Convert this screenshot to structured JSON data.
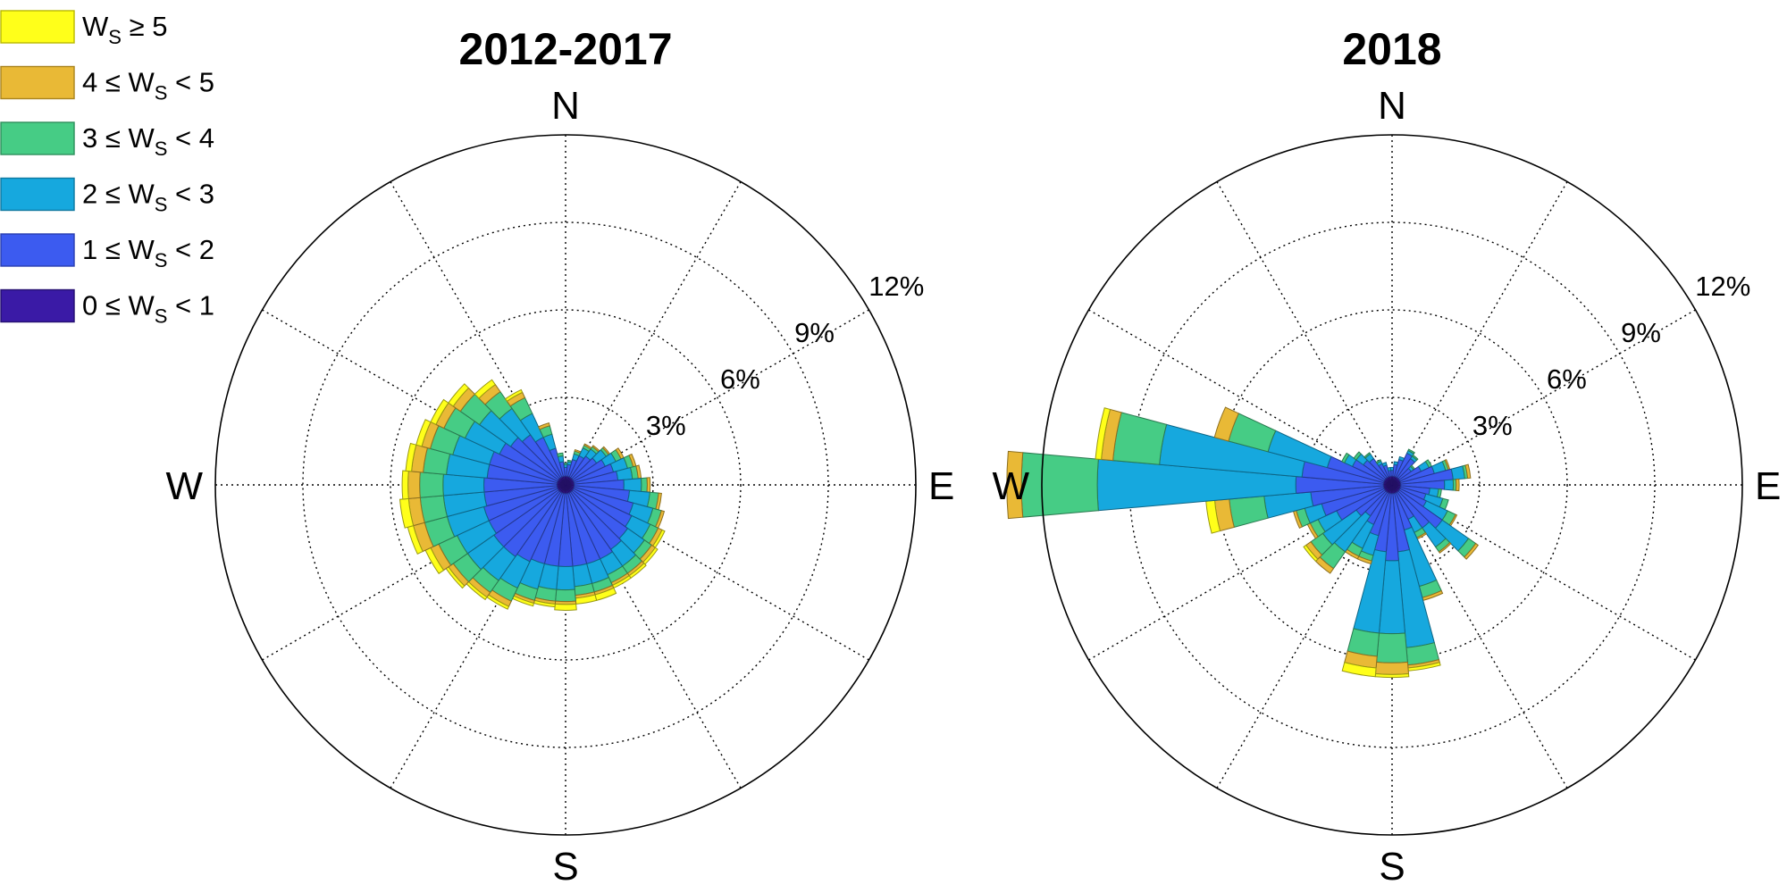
{
  "chart_data": [
    {
      "type": "windrose",
      "title": "2012-2017",
      "rings_percent": [
        3,
        6,
        9,
        12
      ],
      "ring_labels": [
        "3%",
        "6%",
        "9%",
        "12%"
      ],
      "r_max_percent": 12,
      "directions_labels": {
        "N": "N",
        "E": "E",
        "S": "S",
        "W": "W"
      },
      "sector_width_deg": 10,
      "sector_directions_deg": [
        0,
        10,
        20,
        30,
        40,
        50,
        60,
        70,
        80,
        90,
        100,
        110,
        120,
        130,
        140,
        150,
        160,
        170,
        180,
        190,
        200,
        210,
        220,
        230,
        240,
        250,
        260,
        270,
        280,
        290,
        300,
        310,
        320,
        330,
        340,
        350
      ],
      "series": [
        {
          "name": "0 ≤ W_S < 1",
          "color": "#3a1aa6",
          "values": [
            0.3,
            0.3,
            0.3,
            0.3,
            0.3,
            0.3,
            0.3,
            0.3,
            0.3,
            0.3,
            0.3,
            0.3,
            0.3,
            0.3,
            0.3,
            0.3,
            0.3,
            0.3,
            0.3,
            0.3,
            0.3,
            0.3,
            0.3,
            0.3,
            0.3,
            0.3,
            0.3,
            0.3,
            0.3,
            0.3,
            0.3,
            0.3,
            0.3,
            0.3,
            0.3,
            0.3
          ]
        },
        {
          "name": "1 ≤ W_S < 2",
          "color": "#3c5bf0",
          "values": [
            0.3,
            0.4,
            0.6,
            0.8,
            0.9,
            1.0,
            1.2,
            1.4,
            1.5,
            1.7,
            1.9,
            2.1,
            2.2,
            2.3,
            2.4,
            2.5,
            2.5,
            2.5,
            2.5,
            2.5,
            2.5,
            2.6,
            2.7,
            2.7,
            2.6,
            2.6,
            2.5,
            2.5,
            2.4,
            2.4,
            2.2,
            2.0,
            1.8,
            1.5,
            1.0,
            0.5
          ]
        },
        {
          "name": "2 ≤ W_S < 3",
          "color": "#16a8de",
          "values": [
            0.1,
            0.1,
            0.2,
            0.3,
            0.3,
            0.4,
            0.4,
            0.5,
            0.5,
            0.6,
            0.7,
            0.7,
            0.7,
            0.7,
            0.7,
            0.6,
            0.7,
            0.7,
            0.8,
            0.8,
            0.9,
            1.0,
            1.0,
            1.1,
            1.2,
            1.3,
            1.4,
            1.4,
            1.4,
            1.3,
            1.3,
            1.3,
            1.1,
            0.9,
            0.5,
            0.2
          ]
        },
        {
          "name": "3 ≤ W_S < 4",
          "color": "#46cc85",
          "values": [
            0.05,
            0.05,
            0.1,
            0.1,
            0.1,
            0.1,
            0.2,
            0.2,
            0.2,
            0.2,
            0.3,
            0.3,
            0.3,
            0.3,
            0.3,
            0.3,
            0.3,
            0.3,
            0.4,
            0.4,
            0.4,
            0.5,
            0.5,
            0.6,
            0.7,
            0.8,
            0.8,
            0.8,
            0.8,
            0.8,
            0.8,
            0.8,
            0.7,
            0.6,
            0.3,
            0.1
          ]
        },
        {
          "name": "4 ≤ W_S < 5",
          "color": "#e9b936",
          "values": [
            0.0,
            0.0,
            0.05,
            0.05,
            0.05,
            0.05,
            0.1,
            0.1,
            0.1,
            0.1,
            0.1,
            0.1,
            0.15,
            0.15,
            0.1,
            0.1,
            0.1,
            0.1,
            0.1,
            0.1,
            0.1,
            0.2,
            0.2,
            0.2,
            0.3,
            0.4,
            0.4,
            0.4,
            0.4,
            0.3,
            0.3,
            0.3,
            0.3,
            0.2,
            0.1,
            0.0
          ]
        },
        {
          "name": "W_S ≥ 5",
          "color": "#ffff1a",
          "values": [
            0.0,
            0.0,
            0.0,
            0.0,
            0.0,
            0.0,
            0.0,
            0.0,
            0.0,
            0.0,
            0.0,
            0.0,
            0.1,
            0.1,
            0.1,
            0.1,
            0.2,
            0.2,
            0.2,
            0.1,
            0.1,
            0.1,
            0.1,
            0.1,
            0.2,
            0.2,
            0.3,
            0.2,
            0.2,
            0.2,
            0.2,
            0.2,
            0.2,
            0.1,
            0.0,
            0.0
          ]
        }
      ]
    },
    {
      "type": "windrose",
      "title": "2018",
      "rings_percent": [
        3,
        6,
        9,
        12
      ],
      "ring_labels": [
        "3%",
        "6%",
        "9%",
        "12%"
      ],
      "r_max_percent": 12,
      "directions_labels": {
        "N": "N",
        "E": "E",
        "S": "S",
        "W": "W"
      },
      "sector_width_deg": 10,
      "sector_directions_deg": [
        0,
        10,
        20,
        30,
        40,
        50,
        60,
        70,
        80,
        90,
        100,
        110,
        120,
        130,
        140,
        150,
        160,
        170,
        180,
        190,
        200,
        210,
        220,
        230,
        240,
        250,
        260,
        270,
        280,
        290,
        300,
        310,
        320,
        330,
        340,
        350
      ],
      "series": [
        {
          "name": "0 ≤ W_S < 1",
          "color": "#3a1aa6",
          "values": [
            0.3,
            0.3,
            0.3,
            0.3,
            0.3,
            0.3,
            0.3,
            0.3,
            0.3,
            0.3,
            0.3,
            0.3,
            0.3,
            0.3,
            0.3,
            0.3,
            0.3,
            0.3,
            0.3,
            0.3,
            0.3,
            0.3,
            0.3,
            0.3,
            0.3,
            0.3,
            0.3,
            0.3,
            0.3,
            0.3,
            0.3,
            0.3,
            0.3,
            0.3,
            0.3,
            0.3
          ]
        },
        {
          "name": "1 ≤ W_S < 2",
          "color": "#3c5bf0",
          "values": [
            0.2,
            0.4,
            0.6,
            0.9,
            0.8,
            0.5,
            0.8,
            1.2,
            1.8,
            1.5,
            1.0,
            0.9,
            1.0,
            1.8,
            1.5,
            1.0,
            1.3,
            2.0,
            2.3,
            2.0,
            1.5,
            1.2,
            1.0,
            1.2,
            1.8,
            2.2,
            2.5,
            3.0,
            2.8,
            2.0,
            1.2,
            0.9,
            0.8,
            0.5,
            0.4,
            0.2
          ]
        },
        {
          "name": "2 ≤ W_S < 3",
          "color": "#16a8de",
          "values": [
            0.1,
            0.1,
            0.1,
            0.1,
            0.1,
            0.1,
            0.3,
            0.4,
            0.4,
            0.3,
            0.3,
            0.6,
            0.8,
            1.1,
            0.8,
            0.5,
            2.0,
            3.3,
            2.5,
            2.8,
            0.7,
            0.9,
            1.5,
            1.4,
            0.7,
            0.6,
            1.6,
            6.8,
            4.9,
            2.1,
            0.3,
            0.3,
            0.2,
            0.1,
            0.1,
            0.1
          ]
        },
        {
          "name": "3 ≤ W_S < 4",
          "color": "#46cc85",
          "values": [
            0.0,
            0.0,
            0.0,
            0.05,
            0.05,
            0.05,
            0.1,
            0.1,
            0.1,
            0.1,
            0.1,
            0.2,
            0.3,
            0.3,
            0.2,
            0.2,
            0.4,
            0.6,
            1.0,
            0.8,
            0.2,
            0.3,
            0.7,
            0.5,
            0.3,
            0.3,
            1.2,
            2.6,
            1.6,
            1.4,
            0.1,
            0.1,
            0.05,
            0.05,
            0.0,
            0.0
          ]
        },
        {
          "name": "4 ≤ W_S < 5",
          "color": "#e9b936",
          "values": [
            0.0,
            0.0,
            0.0,
            0.0,
            0.0,
            0.0,
            0.0,
            0.05,
            0.1,
            0.1,
            0.0,
            0.0,
            0.05,
            0.1,
            0.05,
            0.05,
            0.1,
            0.1,
            0.4,
            0.4,
            0.1,
            0.1,
            0.2,
            0.2,
            0.1,
            0.1,
            0.5,
            0.5,
            0.4,
            0.5,
            0.0,
            0.0,
            0.0,
            0.0,
            0.0,
            0.0
          ]
        },
        {
          "name": "W_S ≥ 5",
          "color": "#ffff1a",
          "values": [
            0.0,
            0.0,
            0.0,
            0.0,
            0.0,
            0.0,
            0.0,
            0.0,
            0.0,
            0.0,
            0.0,
            0.0,
            0.0,
            0.0,
            0.0,
            0.0,
            0.0,
            0.1,
            0.1,
            0.3,
            0.0,
            0.0,
            0.0,
            0.1,
            0.0,
            0.0,
            0.3,
            0.0,
            0.2,
            0.0,
            0.0,
            0.0,
            0.0,
            0.0,
            0.0,
            0.0
          ]
        }
      ]
    }
  ],
  "legend": {
    "items": [
      {
        "pre": "W",
        "sub": "S",
        "post": " ≥ 5",
        "color": "#ffff1a",
        "border": "#b8b800"
      },
      {
        "pre": "4 ≤ W",
        "sub": "S",
        "post": " < 5",
        "color": "#e9b936",
        "border": "#a98420"
      },
      {
        "pre": "3 ≤ W",
        "sub": "S",
        "post": " < 4",
        "color": "#46cc85",
        "border": "#2e8f5c"
      },
      {
        "pre": "2 ≤ W",
        "sub": "S",
        "post": " < 3",
        "color": "#16a8de",
        "border": "#0e78a0"
      },
      {
        "pre": "1 ≤ W",
        "sub": "S",
        "post": " < 2",
        "color": "#3c5bf0",
        "border": "#2a3fb0"
      },
      {
        "pre": "0 ≤ W",
        "sub": "S",
        "post": " < 1",
        "color": "#3a1aa6",
        "border": "#251070"
      }
    ]
  }
}
